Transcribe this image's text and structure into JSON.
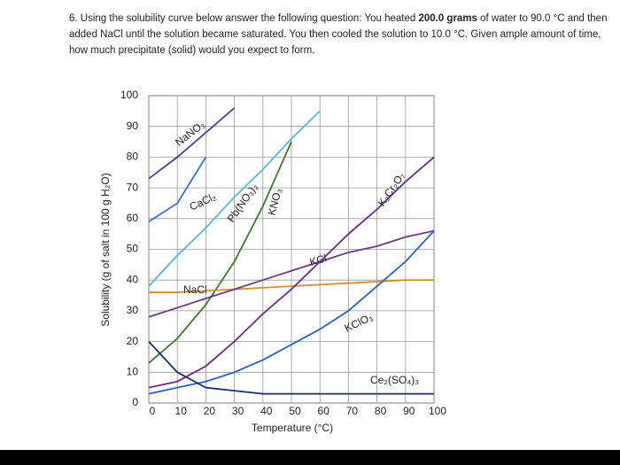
{
  "question": [
    "6. Using the solubility curve below answer the following question: You heated ",
    "200.0 grams",
    " of water to 90.0 °C and then added NaCl until the solution became saturated. You then cooled the solution to 10.0 °C. Given ample amount of time, how much precipitate (solid) would you expect to form."
  ],
  "chart_data": {
    "type": "line",
    "xlabel": "Temperature (°C)",
    "ylabel": "Solubility (g of salt in 100 g H₂O)",
    "x": [
      0,
      10,
      20,
      30,
      40,
      50,
      60,
      70,
      80,
      90,
      100
    ],
    "xlim": [
      0,
      100
    ],
    "ylim": [
      0,
      100
    ],
    "xticks": [
      0,
      10,
      20,
      30,
      40,
      50,
      60,
      70,
      80,
      90,
      100
    ],
    "yticks": [
      0,
      10,
      20,
      30,
      40,
      50,
      60,
      70,
      80,
      90,
      100
    ],
    "grid": true,
    "series": [
      {
        "name": "NaNO₃",
        "color": "#4b3fa0",
        "values": [
          73,
          80,
          88,
          96,
          null,
          null,
          null,
          null,
          null,
          null,
          null
        ]
      },
      {
        "name": "CaCl₂",
        "color": "#3a6fd8",
        "values": [
          59,
          65,
          80,
          null,
          null,
          null,
          null,
          null,
          null,
          null,
          null
        ]
      },
      {
        "name": "Pb(NO₃)₂",
        "color": "#5ab6e8",
        "values": [
          38,
          48,
          57,
          67,
          76,
          86,
          95,
          null,
          null,
          null,
          null
        ]
      },
      {
        "name": "KNO₃",
        "color": "#3a7a2a",
        "values": [
          13,
          21,
          32,
          46,
          64,
          85,
          null,
          null,
          null,
          null,
          null
        ]
      },
      {
        "name": "NaCl",
        "color": "#d4902a",
        "values": [
          36,
          36,
          36.5,
          37,
          37.5,
          38,
          38.5,
          39,
          39.5,
          40,
          40
        ]
      },
      {
        "name": "KCl",
        "color": "#6b3a8a",
        "values": [
          28,
          31,
          34,
          37,
          40,
          43,
          46,
          49,
          51,
          54,
          56
        ]
      },
      {
        "name": "K₂Cr₂O₇",
        "color": "#6b2a8a",
        "values": [
          5,
          7,
          12,
          20,
          29,
          37,
          46,
          55,
          63,
          72,
          80
        ]
      },
      {
        "name": "KClO₃",
        "color": "#2a5fc8",
        "values": [
          3,
          5,
          7,
          10,
          14,
          19,
          24,
          30,
          38,
          46,
          56
        ]
      },
      {
        "name": "Ce₂(SO₄)₃",
        "color": "#1a2a7a",
        "values": [
          20,
          10,
          5,
          4,
          3,
          3,
          3,
          3,
          3,
          3,
          3
        ]
      }
    ]
  }
}
